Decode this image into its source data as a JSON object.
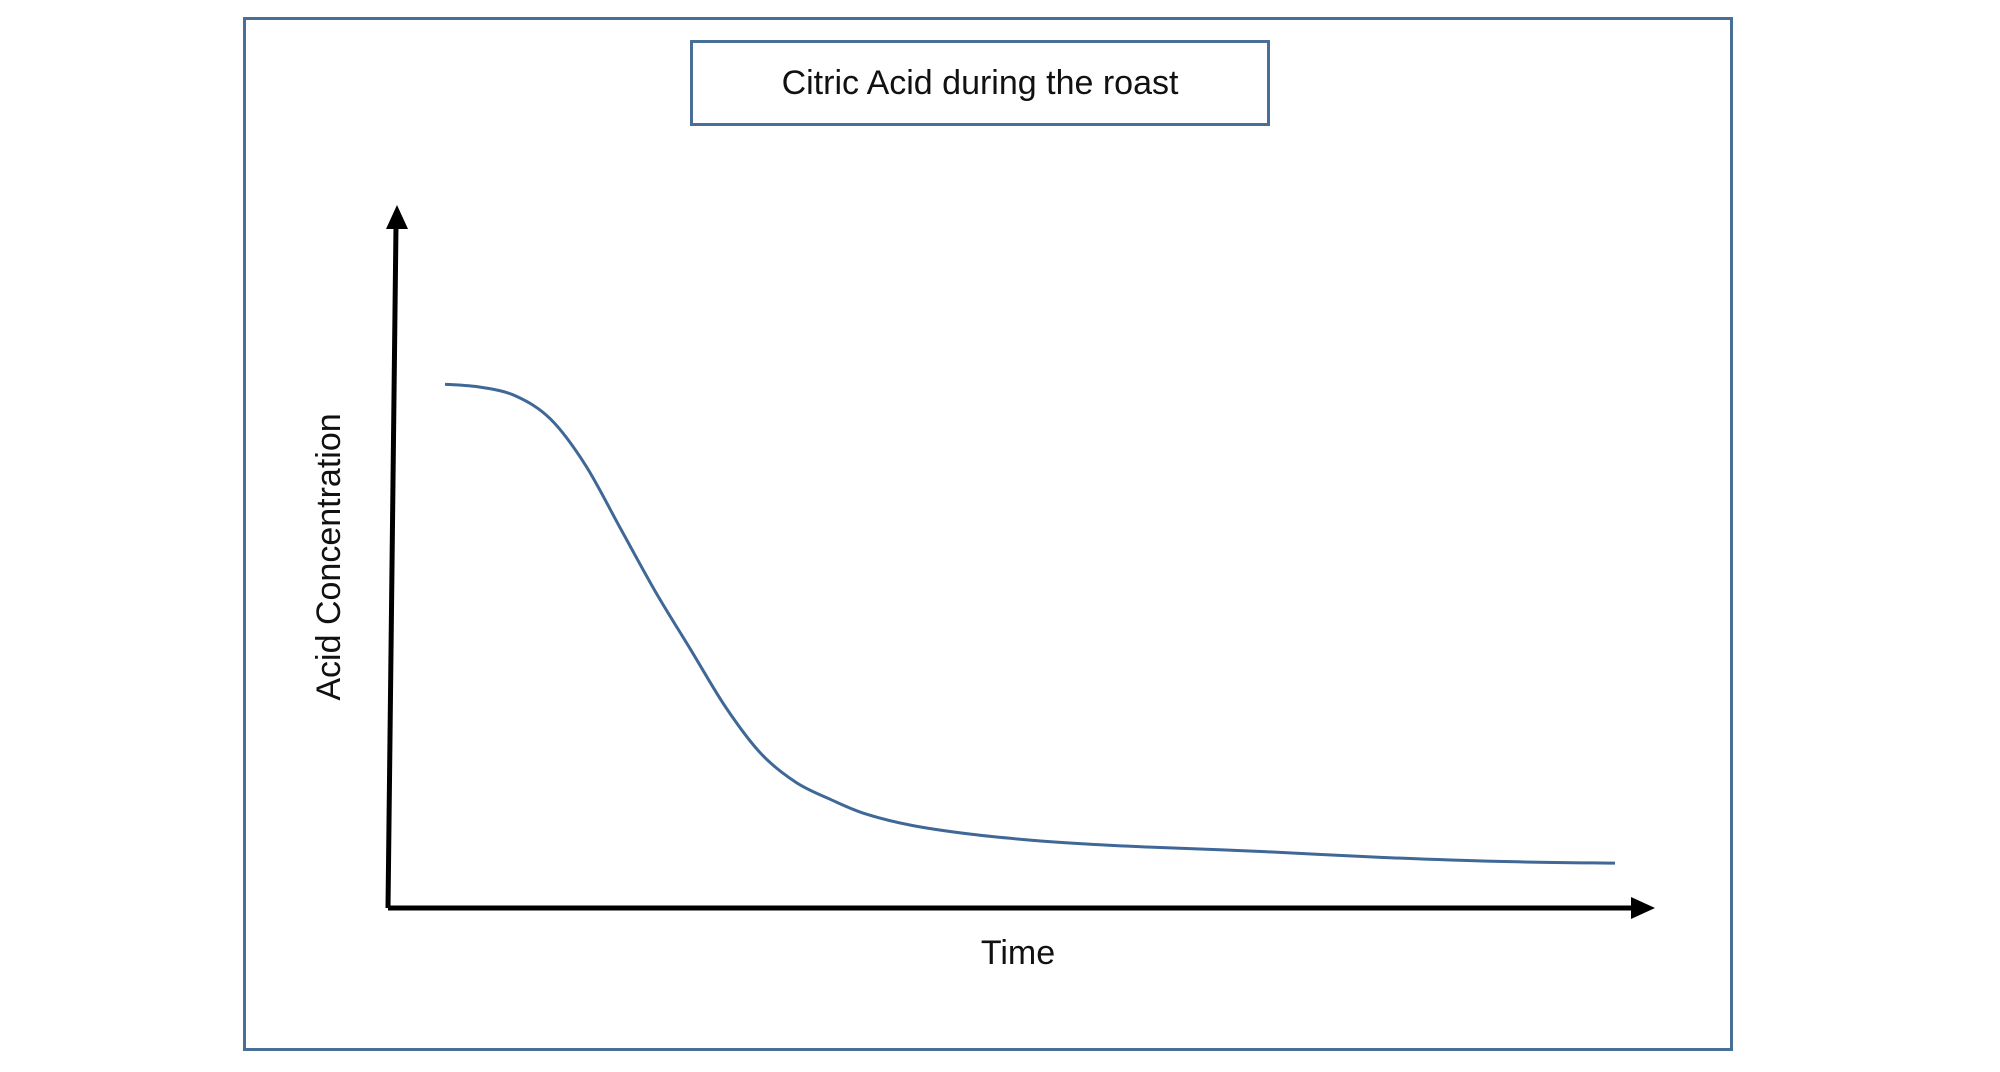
{
  "chart_data": {
    "type": "line",
    "title": "Citric Acid during the roast",
    "xlabel": "Time",
    "ylabel": "Acid Concentration",
    "xlim": [
      0,
      100
    ],
    "ylim": [
      0,
      100
    ],
    "grid": false,
    "ticks": false,
    "line_color": "#3f6896",
    "axis_color": "#000000",
    "series": [
      {
        "name": "",
        "x": [
          0,
          3,
          6,
          9,
          12,
          15,
          18,
          21,
          24,
          27,
          30,
          33,
          36,
          40,
          45,
          50,
          55,
          60,
          70,
          80,
          90,
          100
        ],
        "y": [
          88,
          87.5,
          86,
          82,
          74,
          63,
          52,
          42,
          32,
          24,
          19,
          16,
          13.5,
          11.5,
          10,
          9,
          8.3,
          7.8,
          7,
          6,
          5.3,
          5
        ]
      }
    ]
  }
}
